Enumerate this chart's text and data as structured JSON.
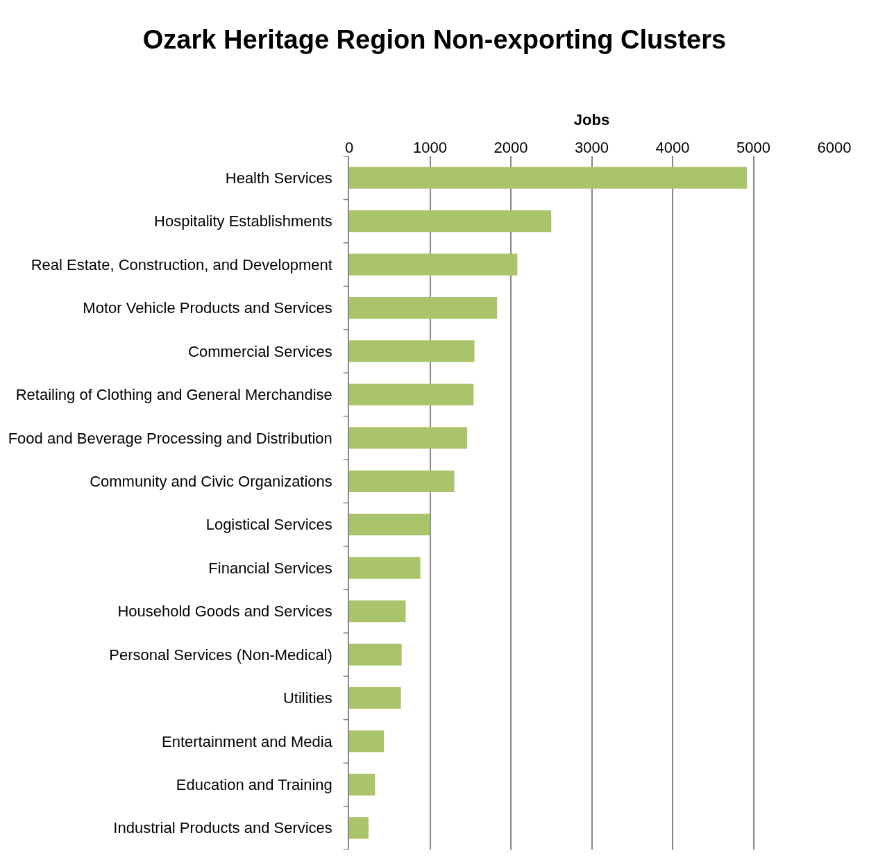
{
  "chart_data": {
    "type": "bar",
    "orientation": "horizontal",
    "title": "Ozark Heritage Region Non-exporting Clusters",
    "xlabel": "Jobs",
    "categories": [
      "Health Services",
      "Hospitality Establishments",
      "Real Estate, Construction, and Development",
      "Motor Vehicle Products and Services",
      "Commercial Services",
      "Retailing of Clothing and General Merchandise",
      "Food and Beverage Processing and Distribution",
      "Community and Civic Organizations",
      "Logistical Services",
      "Financial Services",
      "Household Goods and Services",
      "Personal Services (Non-Medical)",
      "Utilities",
      "Entertainment and Media",
      "Education and Training",
      "Industrial Products and Services"
    ],
    "values": [
      4920,
      2500,
      2080,
      1830,
      1550,
      1540,
      1460,
      1300,
      1000,
      880,
      700,
      650,
      640,
      430,
      320,
      240
    ],
    "color": "#aac46c",
    "xlim": [
      0,
      6000
    ],
    "xticks": [
      0,
      1000,
      2000,
      3000,
      4000,
      5000,
      6000
    ],
    "grid": "x"
  }
}
